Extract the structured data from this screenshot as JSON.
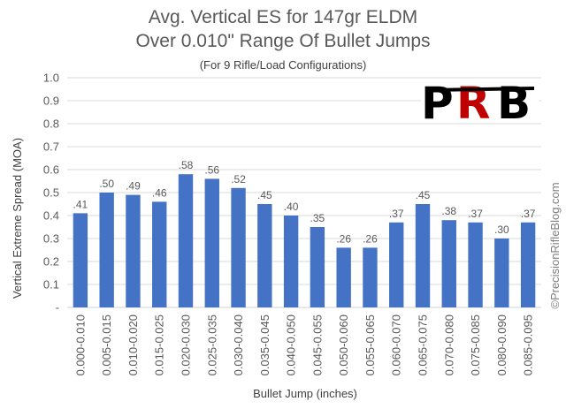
{
  "chart_data": {
    "type": "bar",
    "title": [
      "Avg. Vertical ES for 147gr ELDM",
      "Over 0.010\" Range Of Bullet Jumps"
    ],
    "subtitle": "(For 9 Rifle/Load Configurations)",
    "xlabel": "Bullet Jump (inches)",
    "ylabel": "Vertical Extreme Spread (MOA)",
    "ylim": [
      0,
      1.0
    ],
    "yticks": [
      "-",
      "0.1",
      "0.2",
      "0.3",
      "0.4",
      "0.5",
      "0.6",
      "0.7",
      "0.8",
      "0.9",
      "1.0"
    ],
    "grid": true,
    "categories": [
      "0.000-0.010",
      "0.005-0.015",
      "0.010-0.020",
      "0.015-0.025",
      "0.020-0.030",
      "0.025-0.035",
      "0.030-0.040",
      "0.035-0.045",
      "0.040-0.050",
      "0.045-0.055",
      "0.050-0.060",
      "0.055-0.065",
      "0.060-0.070",
      "0.065-0.075",
      "0.070-0.080",
      "0.075-0.085",
      "0.080-0.090",
      "0.085-0.095"
    ],
    "values": [
      0.41,
      0.5,
      0.49,
      0.46,
      0.58,
      0.56,
      0.52,
      0.45,
      0.4,
      0.35,
      0.26,
      0.26,
      0.37,
      0.45,
      0.38,
      0.37,
      0.3,
      0.37
    ],
    "data_labels": [
      ".41",
      ".50",
      ".49",
      ".46",
      ".58",
      ".56",
      ".52",
      ".45",
      ".40",
      ".35",
      ".26",
      ".26",
      ".37",
      ".45",
      ".38",
      ".37",
      ".30",
      ".37"
    ],
    "bar_color": "#4472C4",
    "grid_color": "#D9D9D9"
  },
  "watermark": "©PrecisionRifleBlog.com",
  "logo": {
    "text": "PRB",
    "colors": [
      "#000000",
      "#C00000"
    ]
  }
}
